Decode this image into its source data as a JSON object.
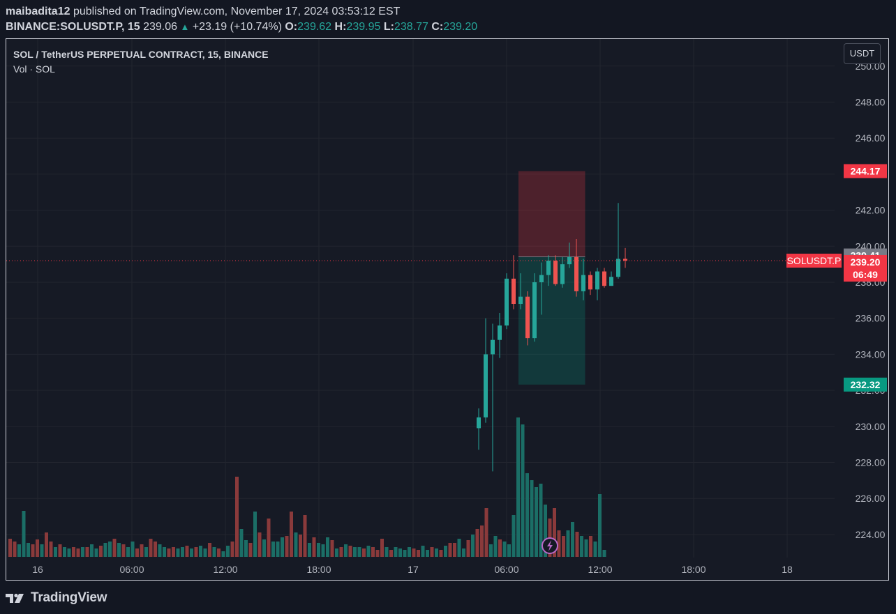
{
  "header": {
    "author": "maibadita12",
    "published_text": "published on TradingView.com, November 17, 2024 03:53:12 EST",
    "symbol": "BINANCE:SOLUSDT.P, 15",
    "last": "239.06",
    "change": "+23.19 (+10.74%)",
    "o_label": "O:",
    "o_value": "239.62",
    "h_label": "H:",
    "h_value": "239.95",
    "l_label": "L:",
    "l_value": "238.77",
    "c_label": "C:",
    "c_value": "239.20"
  },
  "legend": {
    "title": "SOL / TetherUS PERPETUAL CONTRACT, 15, BINANCE",
    "volume": "Vol · SOL"
  },
  "currency_button": "USDT",
  "footer": {
    "brand": "TradingView"
  },
  "icons": {
    "replay": "lightning-icon",
    "logo": "tradingview-logo-icon",
    "up": "triangle-up-icon"
  },
  "colors": {
    "up": "#26a69a",
    "down": "#ef5350",
    "background": "#131722",
    "pane": "#161a25",
    "grid": "#232632"
  },
  "chart_data": {
    "type": "candlestick",
    "y_ticks": [
      "250.00",
      "248.00",
      "246.00",
      "244.00",
      "242.00",
      "240.00",
      "238.00",
      "236.00",
      "234.00",
      "232.00",
      "230.00",
      "228.00",
      "226.00",
      "224.00"
    ],
    "x_ticks": [
      "16",
      "06:00",
      "12:00",
      "18:00",
      "17",
      "06:00",
      "12:00",
      "18:00",
      "18"
    ],
    "ylim": [
      222.8,
      250.3
    ],
    "price_labels": [
      {
        "text": "244.17",
        "value": 244.17,
        "color": "#f23645"
      },
      {
        "text": "239.41",
        "value": 239.41,
        "color": "#787b86"
      },
      {
        "text": "239.20",
        "value": 239.2,
        "color": "#f23645"
      },
      {
        "text": "06:49",
        "value": 238.5,
        "color": "#f23645"
      },
      {
        "text": "232.32",
        "value": 232.32,
        "color": "#089981"
      }
    ],
    "symbol_tag": "SOLUSDT.P",
    "current_price": 239.2,
    "position": {
      "entry": 239.41,
      "stop": 244.17,
      "target": 232.32,
      "start_bar": 112,
      "end_bar": 125
    },
    "candles": [
      [
        8,
        229.9,
        231.0,
        228.7,
        230.5
      ],
      [
        9,
        230.5,
        236.0,
        230.2,
        234.0
      ],
      [
        10,
        234.0,
        235.7,
        227.5,
        234.8
      ],
      [
        11,
        234.8,
        236.3,
        233.8,
        235.6
      ],
      [
        12,
        235.6,
        238.5,
        235.4,
        238.2
      ],
      [
        13,
        238.2,
        239.5,
        236.5,
        236.8
      ],
      [
        14,
        236.8,
        238.5,
        236.5,
        237.2
      ],
      [
        15,
        237.2,
        237.5,
        234.5,
        234.9
      ],
      [
        16,
        234.9,
        238.5,
        234.7,
        238.0
      ],
      [
        17,
        238.0,
        239.1,
        236.2,
        238.4
      ],
      [
        18,
        238.4,
        239.5,
        237.8,
        239.2
      ],
      [
        19,
        239.2,
        239.5,
        237.8,
        237.9
      ],
      [
        20,
        237.9,
        239.4,
        237.7,
        239.0
      ],
      [
        21,
        239.0,
        240.2,
        238.8,
        239.4
      ],
      [
        22,
        239.4,
        240.4,
        237.2,
        237.5
      ],
      [
        23,
        237.5,
        239.3,
        237.0,
        238.4
      ],
      [
        24,
        238.4,
        238.6,
        237.3,
        237.6
      ],
      [
        25,
        237.6,
        238.8,
        237.0,
        238.6
      ],
      [
        26,
        238.6,
        238.8,
        237.7,
        237.8
      ],
      [
        27,
        237.8,
        238.6,
        237.8,
        238.3
      ],
      [
        28,
        238.3,
        242.4,
        238.2,
        239.3
      ],
      [
        29,
        239.3,
        239.9,
        238.8,
        239.2
      ]
    ],
    "volume": [
      [
        0,
        26,
        "d"
      ],
      [
        1,
        22,
        "d"
      ],
      [
        2,
        18,
        "u"
      ],
      [
        3,
        66,
        "u"
      ],
      [
        4,
        20,
        "u"
      ],
      [
        5,
        18,
        "d"
      ],
      [
        6,
        25,
        "d"
      ],
      [
        7,
        18,
        "u"
      ],
      [
        8,
        35,
        "d"
      ],
      [
        9,
        22,
        "d"
      ],
      [
        10,
        14,
        "u"
      ],
      [
        11,
        18,
        "d"
      ],
      [
        12,
        14,
        "u"
      ],
      [
        13,
        12,
        "u"
      ],
      [
        14,
        14,
        "d"
      ],
      [
        15,
        12,
        "d"
      ],
      [
        16,
        14,
        "u"
      ],
      [
        17,
        14,
        "d"
      ],
      [
        18,
        18,
        "u"
      ],
      [
        19,
        12,
        "u"
      ],
      [
        20,
        16,
        "d"
      ],
      [
        21,
        20,
        "u"
      ],
      [
        22,
        22,
        "u"
      ],
      [
        23,
        26,
        "d"
      ],
      [
        24,
        20,
        "u"
      ],
      [
        25,
        18,
        "d"
      ],
      [
        26,
        14,
        "u"
      ],
      [
        27,
        22,
        "u"
      ],
      [
        28,
        12,
        "d"
      ],
      [
        29,
        18,
        "d"
      ],
      [
        30,
        14,
        "u"
      ],
      [
        31,
        26,
        "d"
      ],
      [
        32,
        22,
        "d"
      ],
      [
        33,
        18,
        "u"
      ],
      [
        34,
        14,
        "u"
      ],
      [
        35,
        12,
        "d"
      ],
      [
        36,
        14,
        "d"
      ],
      [
        37,
        12,
        "u"
      ],
      [
        38,
        14,
        "u"
      ],
      [
        39,
        16,
        "d"
      ],
      [
        40,
        12,
        "u"
      ],
      [
        41,
        14,
        "d"
      ],
      [
        42,
        16,
        "u"
      ],
      [
        43,
        12,
        "u"
      ],
      [
        44,
        20,
        "d"
      ],
      [
        45,
        14,
        "u"
      ],
      [
        46,
        12,
        "d"
      ],
      [
        47,
        8,
        "u"
      ],
      [
        48,
        16,
        "u"
      ],
      [
        49,
        22,
        "d"
      ],
      [
        50,
        115,
        "d"
      ],
      [
        51,
        40,
        "u"
      ],
      [
        52,
        24,
        "u"
      ],
      [
        53,
        20,
        "d"
      ],
      [
        54,
        65,
        "u"
      ],
      [
        55,
        35,
        "d"
      ],
      [
        56,
        25,
        "u"
      ],
      [
        57,
        55,
        "d"
      ],
      [
        58,
        22,
        "u"
      ],
      [
        59,
        22,
        "u"
      ],
      [
        60,
        28,
        "u"
      ],
      [
        61,
        30,
        "d"
      ],
      [
        62,
        65,
        "d"
      ],
      [
        63,
        35,
        "u"
      ],
      [
        64,
        32,
        "d"
      ],
      [
        65,
        60,
        "d"
      ],
      [
        66,
        20,
        "u"
      ],
      [
        67,
        28,
        "d"
      ],
      [
        68,
        20,
        "u"
      ],
      [
        69,
        18,
        "u"
      ],
      [
        70,
        28,
        "u"
      ],
      [
        71,
        24,
        "d"
      ],
      [
        72,
        12,
        "u"
      ],
      [
        73,
        14,
        "d"
      ],
      [
        74,
        18,
        "u"
      ],
      [
        75,
        16,
        "d"
      ],
      [
        76,
        14,
        "u"
      ],
      [
        77,
        14,
        "u"
      ],
      [
        78,
        12,
        "d"
      ],
      [
        79,
        16,
        "u"
      ],
      [
        80,
        14,
        "d"
      ],
      [
        81,
        10,
        "d"
      ],
      [
        82,
        26,
        "d"
      ],
      [
        83,
        14,
        "u"
      ],
      [
        84,
        10,
        "d"
      ],
      [
        85,
        14,
        "u"
      ],
      [
        86,
        12,
        "u"
      ],
      [
        87,
        10,
        "u"
      ],
      [
        88,
        14,
        "u"
      ],
      [
        89,
        12,
        "d"
      ],
      [
        90,
        10,
        "d"
      ],
      [
        91,
        16,
        "u"
      ],
      [
        92,
        10,
        "u"
      ],
      [
        93,
        14,
        "d"
      ],
      [
        94,
        12,
        "u"
      ],
      [
        95,
        10,
        "d"
      ],
      [
        96,
        16,
        "u"
      ],
      [
        97,
        20,
        "d"
      ],
      [
        98,
        20,
        "d"
      ],
      [
        99,
        26,
        "u"
      ],
      [
        100,
        12,
        "u"
      ],
      [
        101,
        24,
        "d"
      ],
      [
        102,
        32,
        "u"
      ],
      [
        103,
        40,
        "d"
      ],
      [
        104,
        45,
        "d"
      ],
      [
        105,
        70,
        "d"
      ],
      [
        106,
        18,
        "u"
      ],
      [
        107,
        30,
        "u"
      ],
      [
        108,
        25,
        "d"
      ],
      [
        109,
        22,
        "u"
      ],
      [
        110,
        18,
        "u"
      ],
      [
        111,
        60,
        "u"
      ],
      [
        112,
        200,
        "u"
      ],
      [
        113,
        190,
        "u"
      ],
      [
        114,
        120,
        "u"
      ],
      [
        115,
        110,
        "u"
      ],
      [
        116,
        100,
        "u"
      ],
      [
        117,
        105,
        "u"
      ],
      [
        118,
        75,
        "u"
      ],
      [
        119,
        55,
        "d"
      ],
      [
        120,
        70,
        "d"
      ],
      [
        121,
        38,
        "d"
      ],
      [
        122,
        30,
        "d"
      ],
      [
        123,
        38,
        "u"
      ],
      [
        124,
        50,
        "u"
      ],
      [
        125,
        36,
        "d"
      ],
      [
        126,
        30,
        "u"
      ],
      [
        127,
        25,
        "u"
      ],
      [
        128,
        30,
        "d"
      ],
      [
        129,
        22,
        "u"
      ],
      [
        130,
        90,
        "u"
      ],
      [
        131,
        10,
        "u"
      ]
    ]
  }
}
